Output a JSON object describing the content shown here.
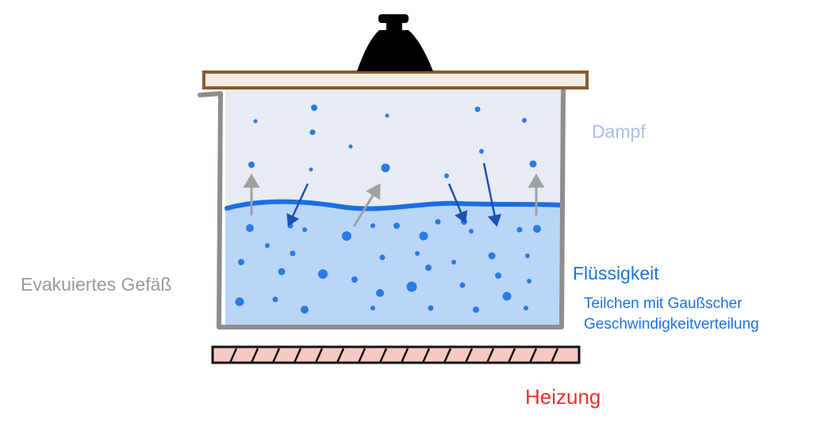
{
  "labels": {
    "vapor": "Dampf",
    "liquid": "Flüssigkeit",
    "particles_line1": "Teilchen mit Gaußscher",
    "particles_line2": "Geschwindigkeitverteilung",
    "vessel": "Evakuiertes Gefäß",
    "heater": "Heizung"
  },
  "colors": {
    "vapor_label": "#a9bfe3",
    "liquid_label": "#1a73e8",
    "particles_label": "#1a73e8",
    "vessel_label": "#9a9a9a",
    "heater_label": "#e8322a",
    "vapor_fill": "#e6ecf2",
    "liquid_fill": "#b9d6f8",
    "surface": "#1a6fe0",
    "particle": "#2a7be4",
    "vessel_wall": "#8e8e8e",
    "lid_fill": "#f3ece2",
    "lid_border": "#8a5a2b",
    "weight": "#000000",
    "heater_fill": "#f8c9c3",
    "heater_border": "#111111",
    "arrow_up": "#a0a0a0",
    "arrow_down": "#1f4fb3"
  },
  "icons": {
    "weight": "weight-icon",
    "heater": "heating-plate-icon"
  }
}
